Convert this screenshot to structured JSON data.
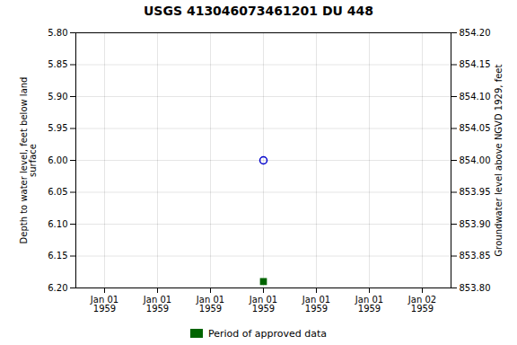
{
  "chart_data": {
    "type": "scatter",
    "title": "USGS 413046073461201 DU 448",
    "ylabel": "Depth to water level, feet below land\nsurface",
    "y2label": "Groundwater level above NGVD 1929, feet",
    "categories": [
      "Jan 01\n1959",
      "Jan 01\n1959",
      "Jan 01\n1959",
      "Jan 01\n1959",
      "Jan 01\n1959",
      "Jan 01\n1959",
      "Jan 02\n1959"
    ],
    "series": [
      {
        "color": "#0000cc",
        "marker": "circle",
        "values": [
          null,
          null,
          null,
          6.0,
          null,
          null,
          null
        ]
      },
      {
        "name": "Period of approved data",
        "color": "#006400",
        "marker": "square",
        "values": [
          null,
          null,
          null,
          6.19,
          null,
          null,
          null
        ]
      }
    ],
    "ylim": [
      6.2,
      5.8
    ],
    "yticks": [
      {
        "value": 5.8,
        "label": "5.80"
      },
      5.85,
      {
        "value": 5.9,
        "label": "5.90"
      },
      5.95,
      {
        "value": 6.0,
        "label": "6.00"
      },
      6.05,
      {
        "value": 6.1,
        "label": "6.10"
      },
      6.15,
      {
        "value": 6.2,
        "label": "6.20"
      }
    ],
    "y2lim": [
      853.8,
      854.2
    ],
    "y2ticks": [
      {
        "value": 854.2,
        "label": "854.20"
      },
      854.15,
      {
        "value": 854.1,
        "label": "854.10"
      },
      854.05,
      {
        "value": 854.0,
        "label": "854.00"
      },
      853.95,
      {
        "value": 853.9,
        "label": "853.90"
      },
      853.85,
      {
        "value": 853.8,
        "label": "853.80"
      }
    ],
    "grid": true,
    "legend": "bottom"
  }
}
